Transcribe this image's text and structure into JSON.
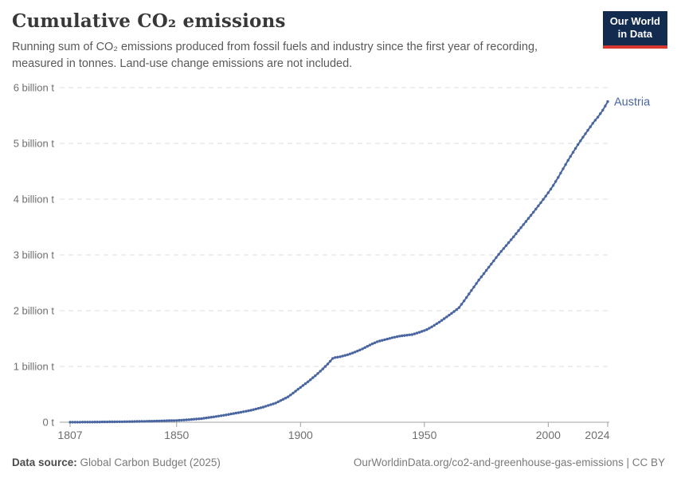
{
  "header": {
    "title": "Cumulative CO₂ emissions",
    "subtitle": "Running sum of CO₂ emissions produced from fossil fuels and industry since the first year of recording, measured in tonnes. Land-use change emissions are not included."
  },
  "logo": {
    "line1": "Our World",
    "line2": "in Data",
    "bg_color": "#122B4E",
    "accent_color": "#D7382E"
  },
  "footer": {
    "source_label": "Data source:",
    "source_value": "Global Carbon Budget (2025)",
    "citation": "OurWorldinData.org/co2-and-greenhouse-gas-emissions | CC BY"
  },
  "colors": {
    "line": "#4A66A0",
    "entity_label": "#4A66A0",
    "grid": "#dcdcdc",
    "axis": "#a0a0a0",
    "tick_text": "#6e6e6e"
  },
  "chart_data": {
    "type": "line",
    "title": "Cumulative CO₂ emissions",
    "unit": "tonnes",
    "entity": "Austria",
    "end_label": "Austria",
    "grid": "horizontal-dashed",
    "point_markers": true,
    "xlim": [
      1807,
      2024
    ],
    "ylim": [
      0,
      6
    ],
    "x_ticks": [
      1807,
      1850,
      1900,
      1950,
      2000,
      2024
    ],
    "y_ticks": [
      {
        "value": 0,
        "label": "0 t"
      },
      {
        "value": 1,
        "label": "1 billion t"
      },
      {
        "value": 2,
        "label": "2 billion t"
      },
      {
        "value": 3,
        "label": "3 billion t"
      },
      {
        "value": 4,
        "label": "4 billion t"
      },
      {
        "value": 5,
        "label": "5 billion t"
      },
      {
        "value": 6,
        "label": "6 billion t"
      }
    ],
    "series": [
      {
        "name": "Austria",
        "color": "#4A66A0",
        "values_unit": "billion tonnes",
        "points": [
          [
            1807,
            0.001
          ],
          [
            1815,
            0.003
          ],
          [
            1820,
            0.005
          ],
          [
            1830,
            0.01
          ],
          [
            1840,
            0.019
          ],
          [
            1850,
            0.032
          ],
          [
            1855,
            0.046
          ],
          [
            1860,
            0.065
          ],
          [
            1865,
            0.096
          ],
          [
            1870,
            0.132
          ],
          [
            1875,
            0.172
          ],
          [
            1880,
            0.215
          ],
          [
            1885,
            0.272
          ],
          [
            1890,
            0.345
          ],
          [
            1895,
            0.455
          ],
          [
            1900,
            0.625
          ],
          [
            1903,
            0.725
          ],
          [
            1906,
            0.835
          ],
          [
            1909,
            0.955
          ],
          [
            1911,
            1.045
          ],
          [
            1913,
            1.145
          ],
          [
            1914,
            1.16
          ],
          [
            1916,
            1.175
          ],
          [
            1919,
            1.21
          ],
          [
            1922,
            1.258
          ],
          [
            1925,
            1.315
          ],
          [
            1928,
            1.385
          ],
          [
            1931,
            1.445
          ],
          [
            1934,
            1.48
          ],
          [
            1937,
            1.515
          ],
          [
            1940,
            1.545
          ],
          [
            1943,
            1.562
          ],
          [
            1945,
            1.572
          ],
          [
            1947,
            1.598
          ],
          [
            1949,
            1.628
          ],
          [
            1951,
            1.662
          ],
          [
            1953,
            1.71
          ],
          [
            1956,
            1.795
          ],
          [
            1959,
            1.888
          ],
          [
            1962,
            1.985
          ],
          [
            1964,
            2.055
          ],
          [
            1966,
            2.175
          ],
          [
            1968,
            2.3
          ],
          [
            1970,
            2.425
          ],
          [
            1972,
            2.55
          ],
          [
            1974,
            2.665
          ],
          [
            1976,
            2.78
          ],
          [
            1978,
            2.895
          ],
          [
            1980,
            3.01
          ],
          [
            1982,
            3.115
          ],
          [
            1984,
            3.22
          ],
          [
            1986,
            3.325
          ],
          [
            1988,
            3.435
          ],
          [
            1990,
            3.545
          ],
          [
            1992,
            3.655
          ],
          [
            1994,
            3.765
          ],
          [
            1996,
            3.88
          ],
          [
            1998,
            3.995
          ],
          [
            2000,
            4.115
          ],
          [
            2002,
            4.245
          ],
          [
            2004,
            4.39
          ],
          [
            2006,
            4.545
          ],
          [
            2008,
            4.695
          ],
          [
            2010,
            4.84
          ],
          [
            2012,
            4.98
          ],
          [
            2014,
            5.11
          ],
          [
            2016,
            5.235
          ],
          [
            2018,
            5.36
          ],
          [
            2020,
            5.47
          ],
          [
            2022,
            5.595
          ],
          [
            2023,
            5.67
          ],
          [
            2024,
            5.75
          ]
        ]
      }
    ]
  }
}
